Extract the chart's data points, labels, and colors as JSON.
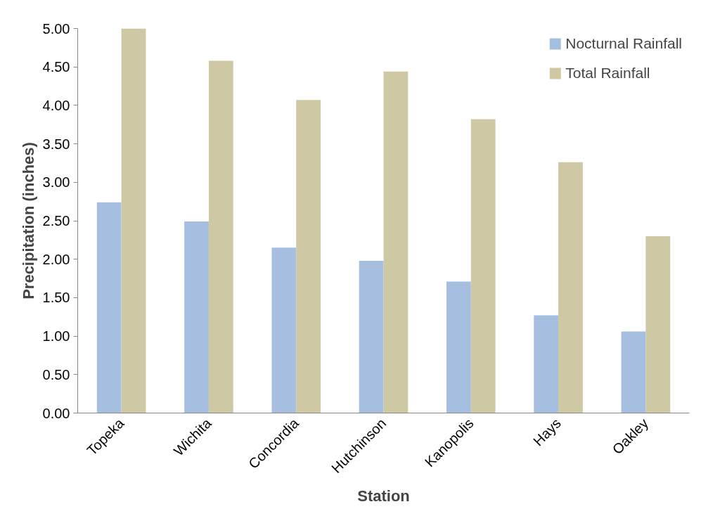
{
  "chart_data": {
    "type": "bar",
    "xlabel": "Station",
    "ylabel": "Precipitation (inches)",
    "categories": [
      "Topeka",
      "Wichita",
      "Concordia",
      "Hutchinson",
      "Kanopolis",
      "Hays",
      "Oakley"
    ],
    "series": [
      {
        "name": "Nocturnal Rainfall",
        "color": "#a6bfe0",
        "values": [
          2.74,
          2.49,
          2.15,
          1.98,
          1.71,
          1.27,
          1.06
        ]
      },
      {
        "name": "Total Rainfall",
        "color": "#cfc8a5",
        "values": [
          5.0,
          4.58,
          4.07,
          4.44,
          3.82,
          3.26,
          2.3
        ]
      }
    ],
    "ylim": [
      0,
      5
    ],
    "yticks": [
      {
        "value": 0,
        "label": "0.00"
      },
      {
        "value": 0.5,
        "label": "0.50"
      },
      {
        "value": 1,
        "label": "1.00"
      },
      {
        "value": 1.5,
        "label": "1.50"
      },
      {
        "value": 2,
        "label": "2.00"
      },
      {
        "value": 2.5,
        "label": "2.50"
      },
      {
        "value": 3,
        "label": "3.00"
      },
      {
        "value": 3.5,
        "label": "3.50"
      },
      {
        "value": 4,
        "label": "4.00"
      },
      {
        "value": 4.5,
        "label": "4.50"
      },
      {
        "value": 5,
        "label": "5.00"
      }
    ],
    "grid": false,
    "legend": "top right"
  }
}
